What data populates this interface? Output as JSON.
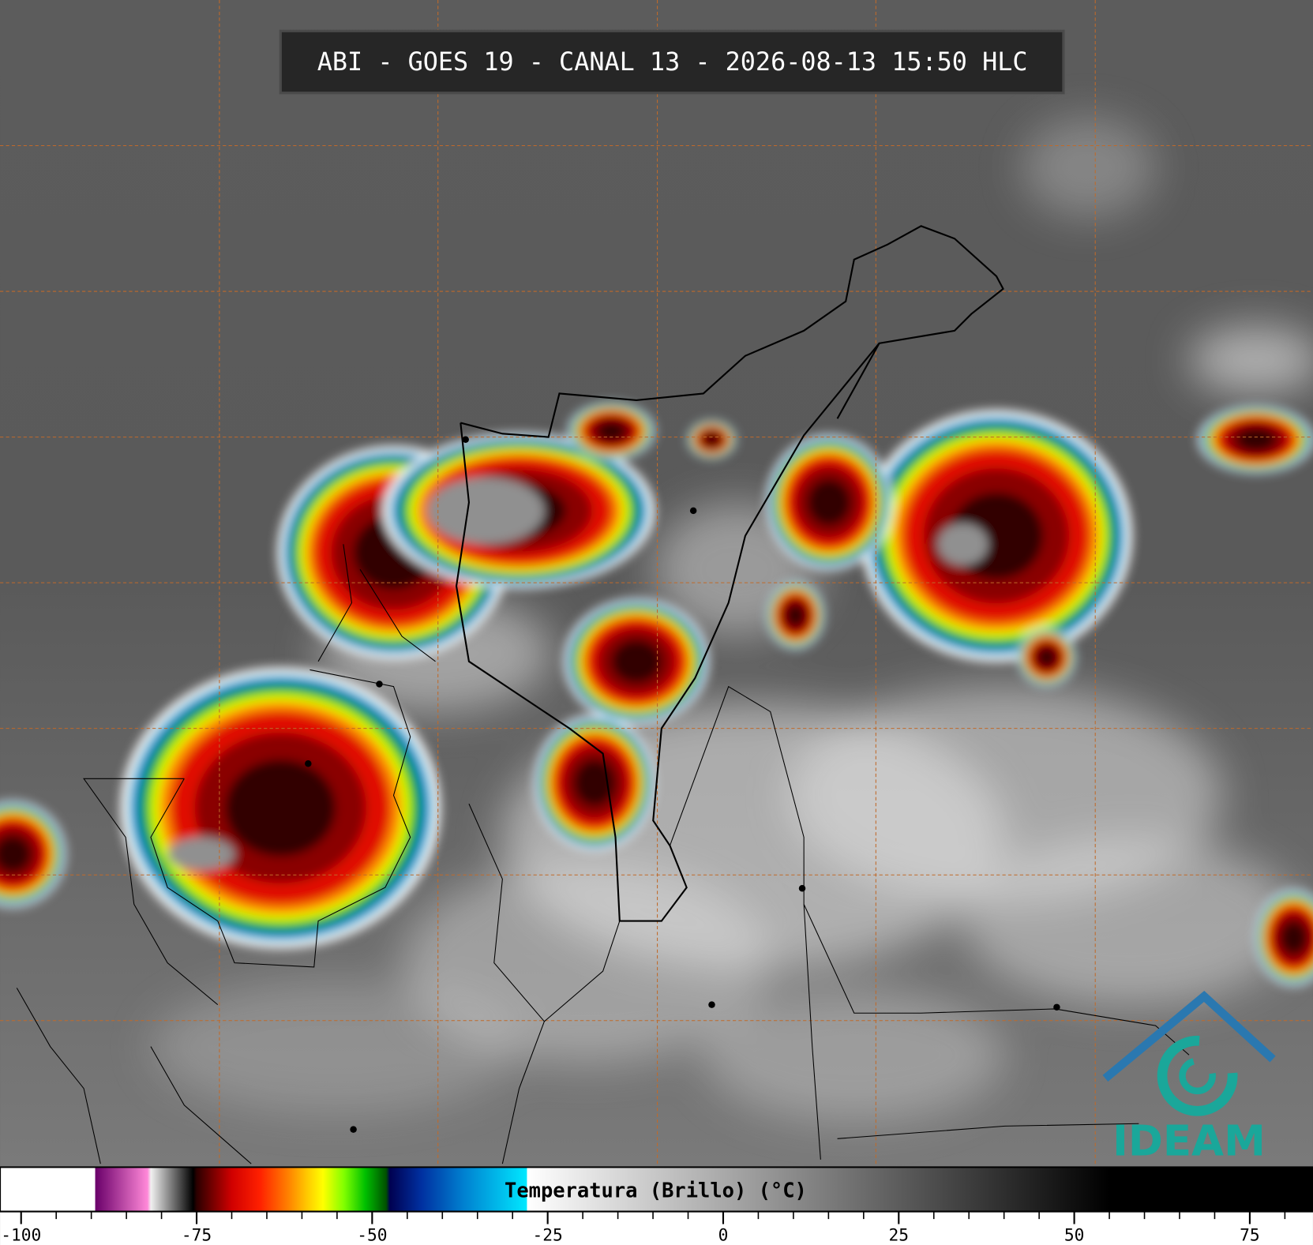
{
  "header": {
    "title": "ABI - GOES 19 - CANAL 13 - 2026-08-13 15:50 HLC"
  },
  "colorbar": {
    "label": "Temperatura (Brillo) (°C)",
    "lim": [
      -103,
      84
    ],
    "ticks": [
      -100,
      -75,
      -50,
      -25,
      0,
      25,
      50,
      75
    ],
    "minor_ticks": [
      -95,
      -90,
      -85,
      -80,
      -70,
      -65,
      -60,
      -55,
      -45,
      -40,
      -35,
      -30,
      -20,
      -15,
      -10,
      -5,
      5,
      10,
      15,
      20,
      30,
      35,
      40,
      45,
      55,
      60,
      65,
      70,
      80
    ],
    "colorscale": [
      [
        -103,
        "#ffffff"
      ],
      [
        -89.5,
        "#ffffff"
      ],
      [
        -89.4,
        "#6a006a"
      ],
      [
        -82,
        "#ff88d8"
      ],
      [
        -81.5,
        "#f0f0f0"
      ],
      [
        -75.5,
        "#000000"
      ],
      [
        -75,
        "#2a0000"
      ],
      [
        -70,
        "#d00000"
      ],
      [
        -66,
        "#ff2000"
      ],
      [
        -62,
        "#ff8000"
      ],
      [
        -59,
        "#ffd000"
      ],
      [
        -57,
        "#ffff00"
      ],
      [
        -54,
        "#80ff00"
      ],
      [
        -51,
        "#00c000"
      ],
      [
        -48,
        "#005000"
      ],
      [
        -47.5,
        "#000050"
      ],
      [
        -43,
        "#0030a0"
      ],
      [
        -37,
        "#0080d0"
      ],
      [
        -28,
        "#00e8ff"
      ],
      [
        -27.9,
        "#ffffff"
      ],
      [
        55,
        "#000000"
      ],
      [
        84,
        "#000000"
      ]
    ]
  },
  "logo": {
    "text": "IDEAM"
  }
}
